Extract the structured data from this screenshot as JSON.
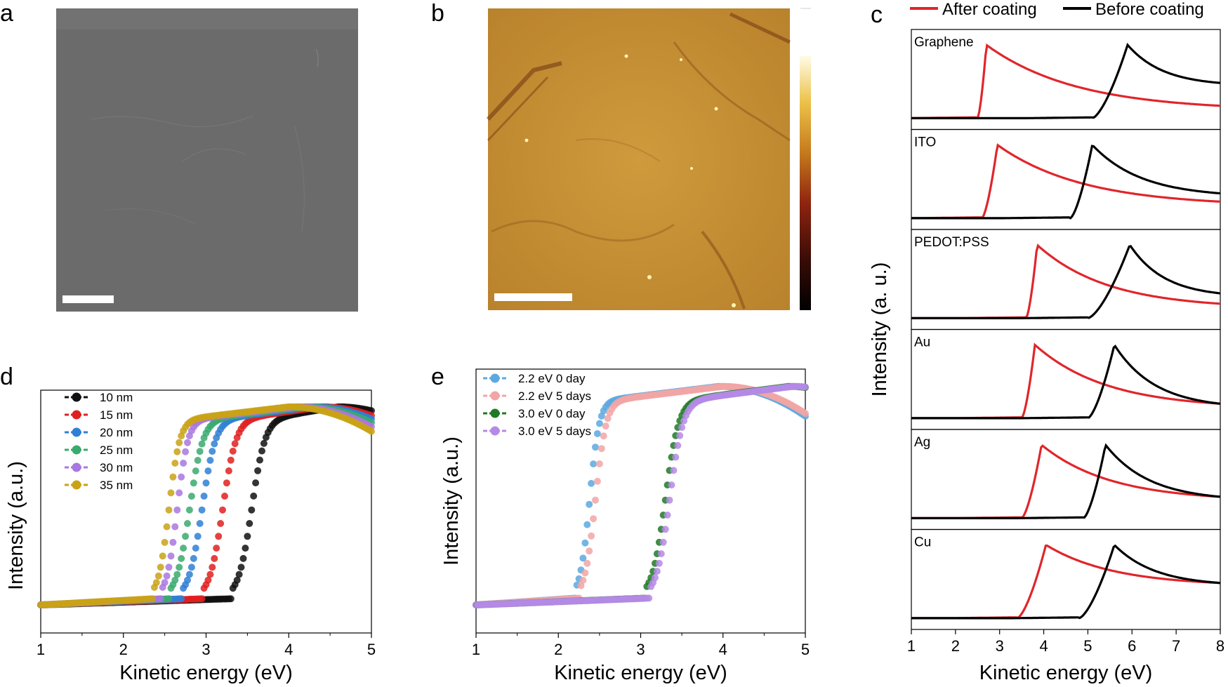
{
  "panels": {
    "a": {
      "label": "a"
    },
    "b": {
      "label": "b"
    },
    "c": {
      "label": "c"
    },
    "d": {
      "label": "d"
    },
    "e": {
      "label": "e"
    }
  },
  "colors": {
    "sem_gray": "#6d6d6d",
    "afm_brown": "#c48a2a",
    "red": "#e0262b",
    "black": "#000000"
  },
  "chart_data": [
    {
      "id": "c",
      "type": "line",
      "xlabel": "Kinetic energy (eV)",
      "ylabel": "Intensity (a. u.)",
      "xlim": [
        1,
        8
      ],
      "xticks": [
        "1",
        "2",
        "3",
        "4",
        "5",
        "6",
        "7",
        "8"
      ],
      "legend": [
        {
          "name": "After coating",
          "color": "#e0262b"
        },
        {
          "name": "Before coating",
          "color": "#000000"
        }
      ],
      "legend_position": "top",
      "subplots": [
        {
          "label": "Graphene",
          "after": {
            "onset": 2.5,
            "peak": 2.7,
            "tail": 0.12
          },
          "before": {
            "onset": 5.1,
            "peak": 5.9,
            "tail": 0.45
          }
        },
        {
          "label": "ITO",
          "after": {
            "onset": 2.6,
            "peak": 2.95,
            "tail": 0.18
          },
          "before": {
            "onset": 4.6,
            "peak": 5.1,
            "tail": 0.3
          }
        },
        {
          "label": "PEDOT:PSS",
          "after": {
            "onset": 3.6,
            "peak": 3.85,
            "tail": 0.15
          },
          "before": {
            "onset": 5.0,
            "peak": 5.95,
            "tail": 0.3
          }
        },
        {
          "label": "Au",
          "after": {
            "onset": 3.5,
            "peak": 3.8,
            "tail": 0.15
          },
          "before": {
            "onset": 5.0,
            "peak": 5.6,
            "tail": 0.15
          }
        },
        {
          "label": "Ag",
          "after": {
            "onset": 3.5,
            "peak": 3.95,
            "tail": 0.25
          },
          "before": {
            "onset": 4.9,
            "peak": 5.4,
            "tail": 0.25
          }
        },
        {
          "label": "Cu",
          "after": {
            "onset": 3.4,
            "peak": 4.05,
            "tail": 0.45
          },
          "before": {
            "onset": 4.8,
            "peak": 5.6,
            "tail": 0.45
          }
        }
      ]
    },
    {
      "id": "d",
      "type": "scatter",
      "xlabel": "Kinetic energy (eV)",
      "ylabel": "Intensity (a.u.)",
      "xlim": [
        1,
        5
      ],
      "xticks": [
        "1",
        "2",
        "3",
        "4",
        "5"
      ],
      "legend_position": "top-left",
      "series": [
        {
          "name": "10 nm",
          "color": "#111111",
          "onset": 3.3,
          "mid": 3.55,
          "peak": 4.6
        },
        {
          "name": "15 nm",
          "color": "#e0201f",
          "onset": 2.95,
          "mid": 3.2,
          "peak": 4.4
        },
        {
          "name": "20 nm",
          "color": "#2f7fd6",
          "onset": 2.7,
          "mid": 2.95,
          "peak": 4.3
        },
        {
          "name": "25 nm",
          "color": "#3aaa6e",
          "onset": 2.55,
          "mid": 2.8,
          "peak": 4.2
        },
        {
          "name": "30 nm",
          "color": "#a977e0",
          "onset": 2.45,
          "mid": 2.65,
          "peak": 4.1
        },
        {
          "name": "35 nm",
          "color": "#c9a216",
          "onset": 2.35,
          "mid": 2.55,
          "peak": 4.0
        }
      ]
    },
    {
      "id": "e",
      "type": "scatter",
      "xlabel": "Kinetic energy (eV)",
      "ylabel": "Intensity (a.u.)",
      "xlim": [
        1,
        5
      ],
      "xticks": [
        "1",
        "2",
        "3",
        "4",
        "5"
      ],
      "legend_position": "top-left",
      "series": [
        {
          "name": "2.2 eV 0 day",
          "color": "#5aa9e0",
          "onset": 2.2,
          "mid": 2.38,
          "peak": 3.95
        },
        {
          "name": "2.2 eV 5 days",
          "color": "#f2a5a5",
          "onset": 2.25,
          "mid": 2.45,
          "peak": 4.0
        },
        {
          "name": "3.0 eV 0 day",
          "color": "#1f7a25",
          "onset": 3.05,
          "mid": 3.3,
          "peak": 4.8
        },
        {
          "name": "3.0 eV 5 days",
          "color": "#b58ae6",
          "onset": 3.1,
          "mid": 3.35,
          "peak": 4.85
        }
      ]
    }
  ]
}
